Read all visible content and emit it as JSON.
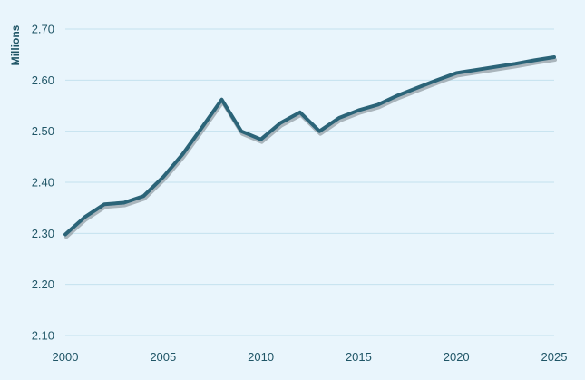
{
  "chart_data": {
    "type": "line",
    "title": "",
    "xlabel": "",
    "ylabel": "Millions",
    "ylim": [
      2.1,
      2.7
    ],
    "xlim": [
      2000,
      2025
    ],
    "grid": "horizontal",
    "x": [
      2000,
      2001,
      2002,
      2003,
      2004,
      2005,
      2006,
      2007,
      2008,
      2009,
      2010,
      2011,
      2012,
      2013,
      2014,
      2015,
      2016,
      2017,
      2018,
      2019,
      2020,
      2021,
      2022,
      2023,
      2024,
      2025
    ],
    "series": [
      {
        "values": [
          2.298,
          2.332,
          2.357,
          2.36,
          2.373,
          2.41,
          2.455,
          2.508,
          2.562,
          2.5,
          2.484,
          2.516,
          2.537,
          2.5,
          2.526,
          2.541,
          2.552,
          2.57,
          2.585,
          2.6,
          2.614,
          2.62,
          2.626,
          2.632,
          2.639,
          2.645
        ]
      }
    ],
    "x_ticks": [
      "2000",
      "2005",
      "2010",
      "2015",
      "2020",
      "2025"
    ],
    "y_ticks": [
      "2.10",
      "2.20",
      "2.30",
      "2.40",
      "2.50",
      "2.60",
      "2.70"
    ],
    "colors": {
      "background": "#e9f5fc",
      "line": "#2b6478",
      "shadow": "#9aa5ab",
      "grid": "#c4e1ee",
      "text": "#1f5566"
    }
  }
}
